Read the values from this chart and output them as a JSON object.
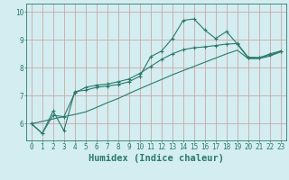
{
  "xlabel": "Humidex (Indice chaleur)",
  "ylabel": "",
  "bg_color": "#d4edf0",
  "grid_color": "#c8a8a8",
  "line_color": "#2a7a6a",
  "xlim": [
    -0.5,
    23.5
  ],
  "ylim": [
    5.4,
    10.3
  ],
  "xticks": [
    0,
    1,
    2,
    3,
    4,
    5,
    6,
    7,
    8,
    9,
    10,
    11,
    12,
    13,
    14,
    15,
    16,
    17,
    18,
    19,
    20,
    21,
    22,
    23
  ],
  "yticks": [
    6,
    7,
    8,
    9,
    10
  ],
  "line1_x": [
    0,
    1,
    2,
    3,
    4,
    5,
    6,
    7,
    8,
    9,
    10,
    11,
    12,
    13,
    14,
    15,
    16,
    17,
    18,
    19,
    20,
    21,
    22,
    23
  ],
  "line1_y": [
    6.0,
    5.65,
    6.45,
    5.75,
    7.15,
    7.2,
    7.3,
    7.35,
    7.4,
    7.5,
    7.7,
    8.4,
    8.6,
    9.05,
    9.7,
    9.75,
    9.35,
    9.05,
    9.3,
    8.85,
    8.35,
    8.35,
    8.5,
    8.6
  ],
  "line2_x": [
    0,
    1,
    2,
    3,
    4,
    5,
    6,
    7,
    8,
    9,
    10,
    11,
    12,
    13,
    14,
    15,
    16,
    17,
    18,
    19,
    20,
    21,
    22,
    23
  ],
  "line2_y": [
    6.0,
    5.65,
    6.3,
    6.25,
    7.1,
    7.3,
    7.38,
    7.42,
    7.5,
    7.6,
    7.8,
    8.05,
    8.3,
    8.5,
    8.65,
    8.72,
    8.75,
    8.8,
    8.85,
    8.87,
    8.38,
    8.37,
    8.45,
    8.6
  ],
  "line3_x": [
    0,
    1,
    2,
    3,
    4,
    5,
    6,
    7,
    8,
    9,
    10,
    11,
    12,
    13,
    14,
    15,
    16,
    17,
    18,
    19,
    20,
    21,
    22,
    23
  ],
  "line3_y": [
    6.0,
    6.08,
    6.17,
    6.25,
    6.33,
    6.42,
    6.58,
    6.75,
    6.9,
    7.08,
    7.25,
    7.42,
    7.58,
    7.75,
    7.9,
    8.05,
    8.2,
    8.35,
    8.5,
    8.63,
    8.33,
    8.33,
    8.42,
    8.57
  ],
  "font_size_axis": 6.5,
  "font_size_tick": 5.5,
  "font_size_xlabel": 7.5
}
